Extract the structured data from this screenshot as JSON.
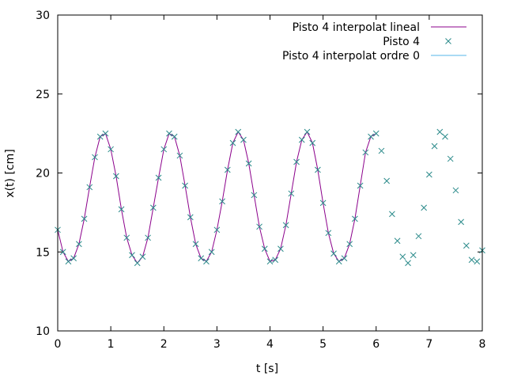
{
  "chart_data": {
    "type": "line",
    "title": "",
    "xlabel": "t [s]",
    "ylabel": "x(t) [cm]",
    "xlim": [
      0,
      8
    ],
    "ylim": [
      10,
      30
    ],
    "xticks": [
      0,
      1,
      2,
      3,
      4,
      5,
      6,
      7,
      8
    ],
    "yticks": [
      10,
      15,
      20,
      25,
      30
    ],
    "grid": false,
    "legend_position": "top-right",
    "colors": {
      "linear": "#8b008b",
      "points": "#2a8a8a",
      "order0": "#56b4e9"
    },
    "series": [
      {
        "name": "Pisto 4 interpolat lineal",
        "kind": "line",
        "x": [
          0,
          0.1,
          0.2,
          0.3,
          0.4,
          0.5,
          0.6,
          0.7,
          0.8,
          0.9,
          1.0,
          1.1,
          1.2,
          1.3,
          1.4,
          1.5,
          1.6,
          1.7,
          1.8,
          1.9,
          2.0,
          2.1,
          2.2,
          2.3,
          2.4,
          2.5,
          2.6,
          2.7,
          2.8,
          2.9,
          3.0,
          3.1,
          3.2,
          3.3,
          3.4,
          3.5,
          3.6,
          3.7,
          3.8,
          3.9,
          4.0,
          4.1,
          4.2,
          4.3,
          4.4,
          4.5,
          4.6,
          4.7,
          4.8,
          4.9,
          5.0,
          5.1,
          5.2,
          5.3,
          5.4,
          5.5,
          5.6,
          5.7,
          5.8,
          5.9,
          6.0
        ],
        "y": [
          16.4,
          15.0,
          14.4,
          14.6,
          15.5,
          17.1,
          19.1,
          21.0,
          22.3,
          22.5,
          21.5,
          19.8,
          17.7,
          15.9,
          14.8,
          14.3,
          14.7,
          15.9,
          17.8,
          19.7,
          21.5,
          22.5,
          22.3,
          21.1,
          19.2,
          17.2,
          15.5,
          14.6,
          14.4,
          15.0,
          16.4,
          18.2,
          20.2,
          21.9,
          22.6,
          22.1,
          20.6,
          18.6,
          16.6,
          15.2,
          14.4,
          14.5,
          15.2,
          16.7,
          18.7,
          20.7,
          22.1,
          22.6,
          21.9,
          20.2,
          18.1,
          16.2,
          14.9,
          14.4,
          14.6,
          15.5,
          17.1,
          19.2,
          21.3,
          22.3,
          22.5
        ]
      },
      {
        "name": "Pisto 4",
        "kind": "points",
        "x": [
          0,
          0.1,
          0.2,
          0.3,
          0.4,
          0.5,
          0.6,
          0.7,
          0.8,
          0.9,
          1.0,
          1.1,
          1.2,
          1.3,
          1.4,
          1.5,
          1.6,
          1.7,
          1.8,
          1.9,
          2.0,
          2.1,
          2.2,
          2.3,
          2.4,
          2.5,
          2.6,
          2.7,
          2.8,
          2.9,
          3.0,
          3.1,
          3.2,
          3.3,
          3.4,
          3.5,
          3.6,
          3.7,
          3.8,
          3.9,
          4.0,
          4.1,
          4.2,
          4.3,
          4.4,
          4.5,
          4.6,
          4.7,
          4.8,
          4.9,
          5.0,
          5.1,
          5.2,
          5.3,
          5.4,
          5.5,
          5.6,
          5.7,
          5.8,
          5.9,
          6.0,
          6.1,
          6.2,
          6.3,
          6.4,
          6.5,
          6.6,
          6.7,
          6.8,
          6.9,
          7.0,
          7.1,
          7.2,
          7.3,
          7.4,
          7.5,
          7.6,
          7.7,
          7.8,
          7.9,
          8.0
        ],
        "y": [
          16.4,
          15.0,
          14.4,
          14.6,
          15.5,
          17.1,
          19.1,
          21.0,
          22.3,
          22.5,
          21.5,
          19.8,
          17.7,
          15.9,
          14.8,
          14.3,
          14.7,
          15.9,
          17.8,
          19.7,
          21.5,
          22.5,
          22.3,
          21.1,
          19.2,
          17.2,
          15.5,
          14.6,
          14.4,
          15.0,
          16.4,
          18.2,
          20.2,
          21.9,
          22.6,
          22.1,
          20.6,
          18.6,
          16.6,
          15.2,
          14.4,
          14.5,
          15.2,
          16.7,
          18.7,
          20.7,
          22.1,
          22.6,
          21.9,
          20.2,
          18.1,
          16.2,
          14.9,
          14.4,
          14.6,
          15.5,
          17.1,
          19.2,
          21.3,
          22.3,
          22.5,
          21.4,
          19.5,
          17.4,
          15.7,
          14.7,
          14.3,
          14.8,
          16.0,
          17.8,
          19.9,
          21.7,
          22.6,
          22.3,
          20.9,
          18.9,
          16.9,
          15.4,
          14.5,
          14.4,
          15.1
        ]
      },
      {
        "name": "Pisto 4 interpolat ordre 0",
        "kind": "step",
        "x": [],
        "y": []
      }
    ]
  }
}
